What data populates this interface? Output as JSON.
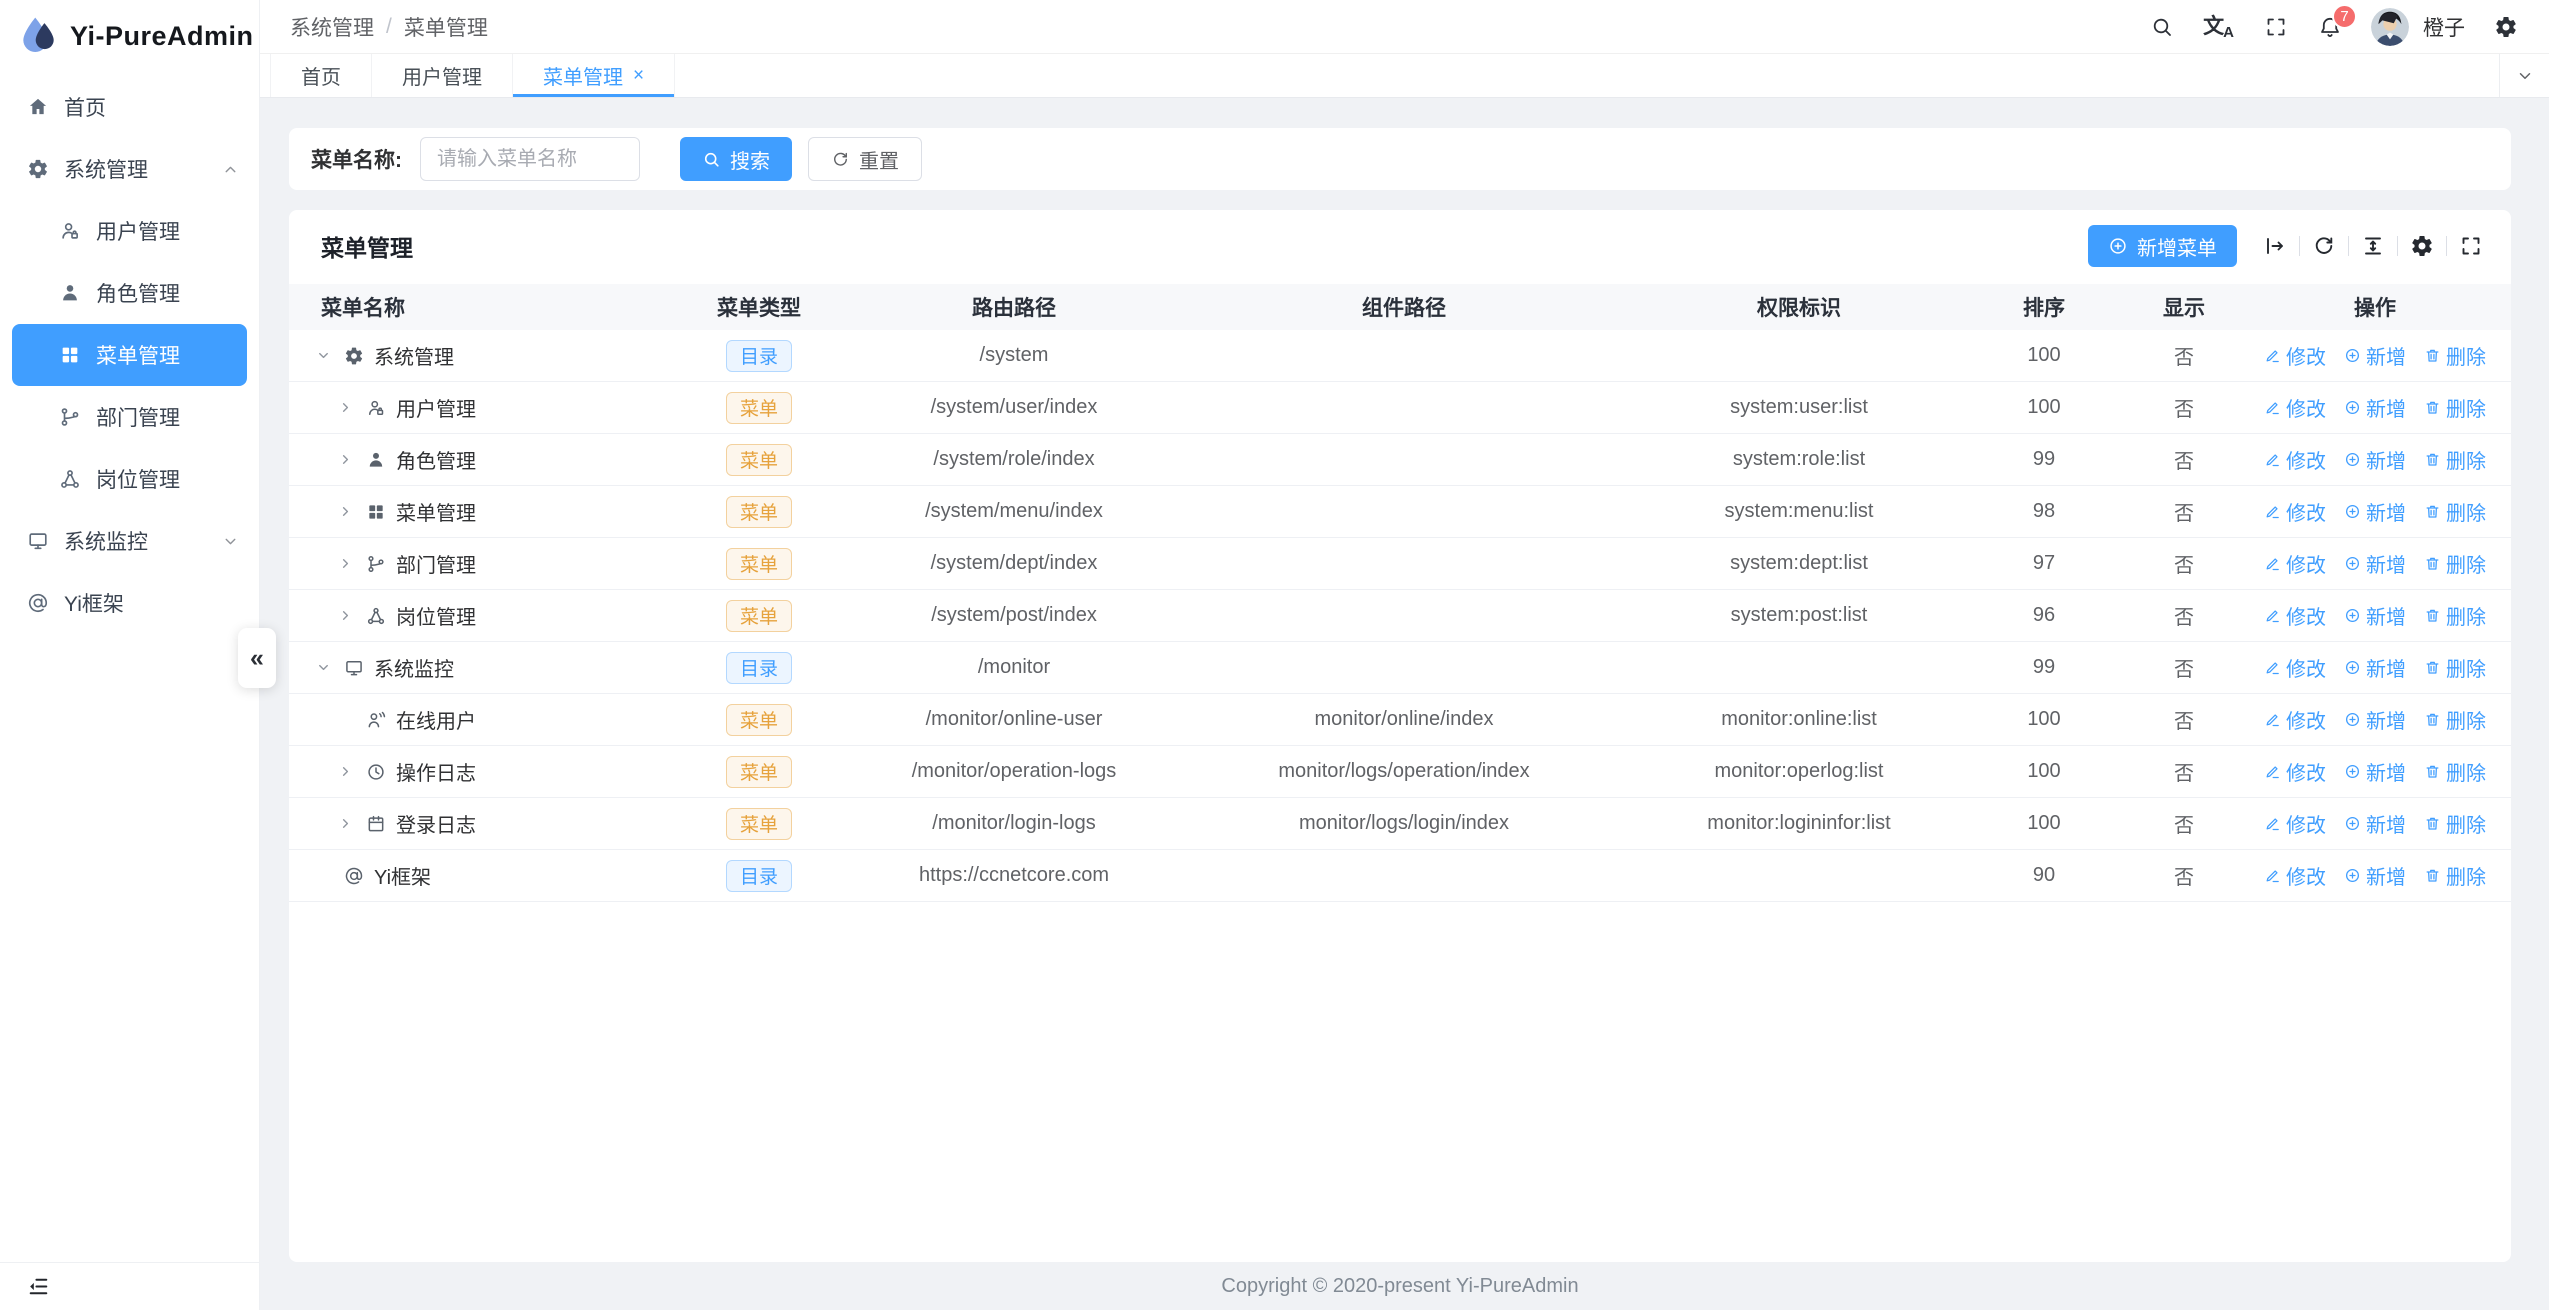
{
  "app_title": "Yi-PureAdmin",
  "breadcrumb": {
    "items": [
      "系统管理",
      "菜单管理"
    ],
    "separator": "/"
  },
  "topbar": {
    "username": "橙子",
    "badge_count": "7"
  },
  "tabbar": {
    "tabs": [
      {
        "label": "首页",
        "active": false
      },
      {
        "label": "用户管理",
        "active": false
      },
      {
        "label": "菜单管理",
        "active": true,
        "closable": true
      }
    ]
  },
  "sidebar": {
    "items": [
      {
        "label": "首页",
        "icon": "home-icon"
      },
      {
        "label": "系统管理",
        "icon": "gear-icon",
        "expanded": true
      },
      {
        "label": "用户管理",
        "icon": "user-icon"
      },
      {
        "label": "角色管理",
        "icon": "role-icon"
      },
      {
        "label": "菜单管理",
        "icon": "menu-grid-icon",
        "active": true
      },
      {
        "label": "部门管理",
        "icon": "dept-icon"
      },
      {
        "label": "岗位管理",
        "icon": "post-icon"
      },
      {
        "label": "系统监控",
        "icon": "monitor-icon",
        "expanded": false
      },
      {
        "label": "Yi框架",
        "icon": "at-icon"
      }
    ]
  },
  "icons": {
    "close": "×",
    "collapse": "«"
  },
  "search": {
    "label": "菜单名称:",
    "placeholder": "请输入菜单名称",
    "search_button": "搜索",
    "reset_button": "重置"
  },
  "panel": {
    "title": "菜单管理",
    "add_button": "新增菜单"
  },
  "table": {
    "columns": [
      "菜单名称",
      "菜单类型",
      "路由路径",
      "组件路径",
      "权限标识",
      "排序",
      "显示",
      "操作"
    ],
    "type_labels": {
      "dir": "目录",
      "menu": "菜单"
    },
    "action_labels": {
      "edit": "修改",
      "add": "新增",
      "delete": "删除"
    },
    "rows": [
      {
        "name": "系统管理",
        "icon": "gear",
        "level": 0,
        "expand": "open",
        "type": "dir",
        "path": "/system",
        "component": "",
        "perm": "",
        "sort": "100",
        "show": "否"
      },
      {
        "name": "用户管理",
        "icon": "user",
        "level": 1,
        "expand": "closed",
        "type": "menu",
        "path": "/system/user/index",
        "component": "",
        "perm": "system:user:list",
        "sort": "100",
        "show": "否"
      },
      {
        "name": "角色管理",
        "icon": "role",
        "level": 1,
        "expand": "closed",
        "type": "menu",
        "path": "/system/role/index",
        "component": "",
        "perm": "system:role:list",
        "sort": "99",
        "show": "否"
      },
      {
        "name": "菜单管理",
        "icon": "grid",
        "level": 1,
        "expand": "closed",
        "type": "menu",
        "path": "/system/menu/index",
        "component": "",
        "perm": "system:menu:list",
        "sort": "98",
        "show": "否"
      },
      {
        "name": "部门管理",
        "icon": "dept",
        "level": 1,
        "expand": "closed",
        "type": "menu",
        "path": "/system/dept/index",
        "component": "",
        "perm": "system:dept:list",
        "sort": "97",
        "show": "否"
      },
      {
        "name": "岗位管理",
        "icon": "post",
        "level": 1,
        "expand": "closed",
        "type": "menu",
        "path": "/system/post/index",
        "component": "",
        "perm": "system:post:list",
        "sort": "96",
        "show": "否"
      },
      {
        "name": "系统监控",
        "icon": "monitor",
        "level": 0,
        "expand": "open",
        "type": "dir",
        "path": "/monitor",
        "component": "",
        "perm": "",
        "sort": "99",
        "show": "否"
      },
      {
        "name": "在线用户",
        "icon": "online",
        "level": 1,
        "expand": "none",
        "type": "menu",
        "path": "/monitor/online-user",
        "component": "monitor/online/index",
        "perm": "monitor:online:list",
        "sort": "100",
        "show": "否"
      },
      {
        "name": "操作日志",
        "icon": "clock",
        "level": 1,
        "expand": "closed",
        "type": "menu",
        "path": "/monitor/operation-logs",
        "component": "monitor/logs/operation/index",
        "perm": "monitor:operlog:list",
        "sort": "100",
        "show": "否"
      },
      {
        "name": "登录日志",
        "icon": "calendar",
        "level": 1,
        "expand": "closed",
        "type": "menu",
        "path": "/monitor/login-logs",
        "component": "monitor/logs/login/index",
        "perm": "monitor:logininfor:list",
        "sort": "100",
        "show": "否"
      },
      {
        "name": "Yi框架",
        "icon": "at",
        "level": 0,
        "expand": "none",
        "type": "dir",
        "path": "https://ccnetcore.com",
        "component": "",
        "perm": "",
        "sort": "90",
        "show": "否"
      }
    ]
  },
  "footer": {
    "copyright": "Copyright © 2020-present Yi-PureAdmin"
  },
  "colors": {
    "primary": "#409eff",
    "badge": "#f56c6c",
    "tag_dir": "#409eff",
    "tag_menu": "#e6a23c",
    "sidebar_active_bg": "#409eff"
  }
}
